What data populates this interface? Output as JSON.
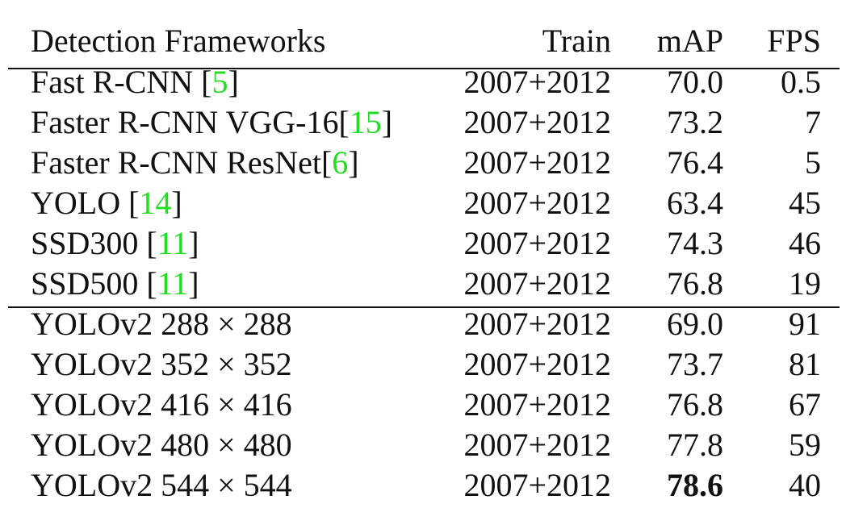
{
  "table": {
    "header": [
      "Detection Frameworks",
      "Train",
      "mAP",
      "FPS"
    ],
    "groups": [
      [
        {
          "name": "Fast R-CNN [",
          "ref": "5",
          "close": "]",
          "train": "2007+2012",
          "map": "70.0",
          "fps": "0.5"
        },
        {
          "name": "Faster R-CNN VGG-16[",
          "ref": "15",
          "close": "]",
          "train": "2007+2012",
          "map": "73.2",
          "fps": "7"
        },
        {
          "name": "Faster R-CNN ResNet[",
          "ref": "6",
          "close": "]",
          "train": "2007+2012",
          "map": "76.4",
          "fps": "5"
        },
        {
          "name": "YOLO [",
          "ref": "14",
          "close": "]",
          "train": "2007+2012",
          "map": "63.4",
          "fps": "45"
        },
        {
          "name": "SSD300 [",
          "ref": "11",
          "close": "]",
          "train": "2007+2012",
          "map": "74.3",
          "fps": "46"
        },
        {
          "name": "SSD500 [",
          "ref": "11",
          "close": "]",
          "train": "2007+2012",
          "map": "76.8",
          "fps": "19"
        }
      ],
      [
        {
          "name": "YOLOv2 288 × 288",
          "train": "2007+2012",
          "map": "69.0",
          "fps": "91"
        },
        {
          "name": "YOLOv2 352 × 352",
          "train": "2007+2012",
          "map": "73.7",
          "fps": "81"
        },
        {
          "name": "YOLOv2 416 × 416",
          "train": "2007+2012",
          "map": "76.8",
          "fps": "67"
        },
        {
          "name": "YOLOv2 480 × 480",
          "train": "2007+2012",
          "map": "77.8",
          "fps": "59"
        },
        {
          "name": "YOLOv2 544 × 544",
          "train": "2007+2012",
          "map": "78.6",
          "fps": "40",
          "best": true
        }
      ]
    ],
    "ref_color": "#22dd22"
  }
}
